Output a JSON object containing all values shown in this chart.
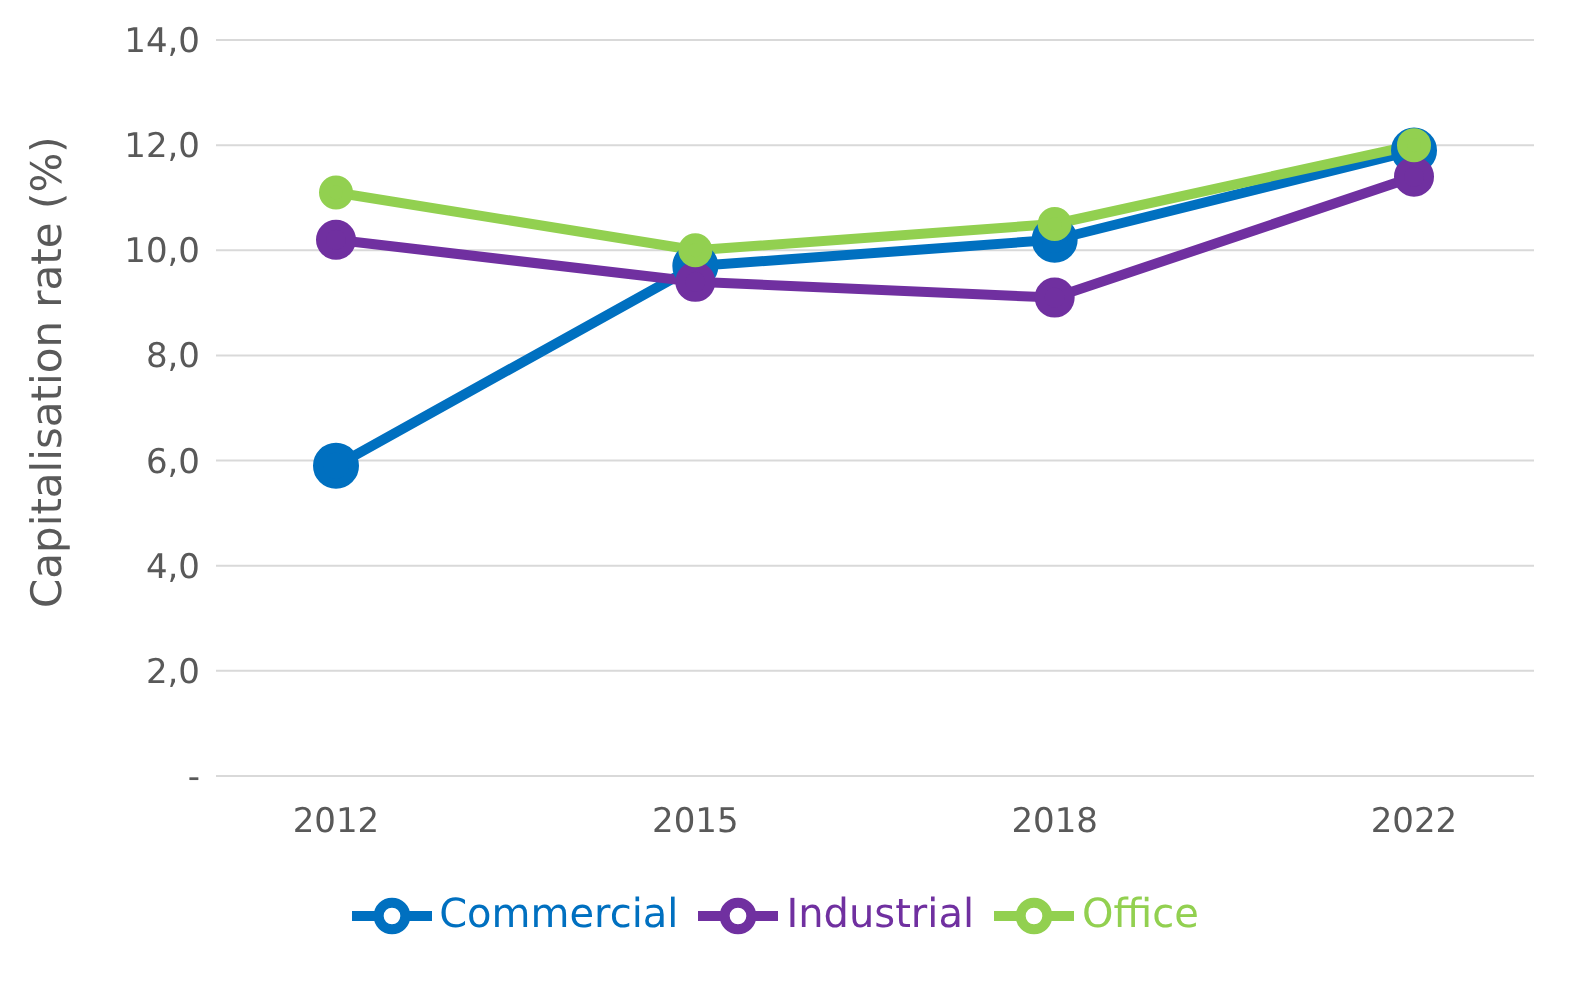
{
  "chart_data": {
    "type": "line",
    "ylabel": "Capitalisation rate (%)",
    "categories": [
      "2012",
      "2015",
      "2018",
      "2022"
    ],
    "series": [
      {
        "name": "Commercial",
        "color": "#0070c0",
        "values": [
          5.9,
          9.7,
          10.2,
          11.9
        ]
      },
      {
        "name": "Industrial",
        "color": "#7030a0",
        "values": [
          10.2,
          9.4,
          9.1,
          11.4
        ]
      },
      {
        "name": "Office",
        "color": "#92d050",
        "values": [
          11.1,
          10.0,
          10.5,
          12.0
        ]
      }
    ],
    "ylim": [
      0,
      14
    ],
    "yticks": [
      {
        "value": 0,
        "label": "-"
      },
      {
        "value": 2,
        "label": "2,0"
      },
      {
        "value": 4,
        "label": "4,0"
      },
      {
        "value": 6,
        "label": "6,0"
      },
      {
        "value": 8,
        "label": "8,0"
      },
      {
        "value": 10,
        "label": "10,0"
      },
      {
        "value": 12,
        "label": "12,0"
      },
      {
        "value": 14,
        "label": "14,0"
      }
    ],
    "grid": "y",
    "legend": "bottom",
    "marker": "circle",
    "line_style": "solid"
  }
}
